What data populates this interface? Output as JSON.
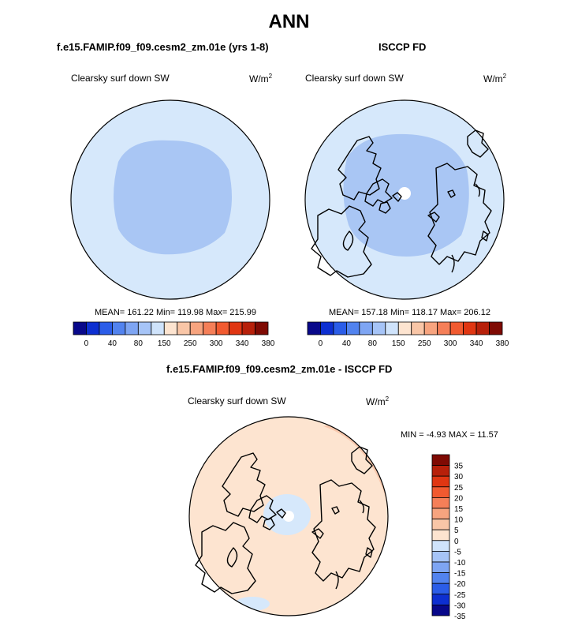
{
  "title": "ANN",
  "panel1": {
    "header": "f.e15.FAMIP.f09_f09.cesm2_zm.01e (yrs 1-8)",
    "variable": "Clearsky surf down SW",
    "unit_base": "W/m",
    "unit_exp": "2",
    "stats": "MEAN= 161.22  Min= 119.98  Max= 215.99"
  },
  "panel2": {
    "header": "ISCCP FD",
    "variable": "Clearsky surf down SW",
    "unit_base": "W/m",
    "unit_exp": "2",
    "stats": "MEAN= 157.18  Min= 118.17  Max= 206.12"
  },
  "panel3": {
    "header": "f.e15.FAMIP.f09_f09.cesm2_zm.01e - ISCCP FD",
    "variable": "Clearsky surf down SW",
    "unit_base": "W/m",
    "unit_exp": "2",
    "stats": "MIN =  -4.93 MAX =  11.57"
  },
  "colorbar_top": {
    "colors": [
      "#08088a",
      "#0d2fd1",
      "#2b5de8",
      "#5283ef",
      "#7ea5f3",
      "#a6c4f7",
      "#cfe3fb",
      "#fde4d0",
      "#f9c6a7",
      "#f7a47f",
      "#f57f58",
      "#f15a30",
      "#e03612",
      "#b7200a",
      "#7f0a03"
    ],
    "labels": [
      "0",
      "40",
      "80",
      "150",
      "250",
      "300",
      "340",
      "380"
    ]
  },
  "colorbar_diff": {
    "colors": [
      "#08088a",
      "#0d2fd1",
      "#2b5de8",
      "#5283ef",
      "#7ea5f3",
      "#a6c4f7",
      "#cfe3fb",
      "#fde4d0",
      "#f9c6a7",
      "#f7a47f",
      "#f57f58",
      "#f15a30",
      "#e03612",
      "#b7200a",
      "#7f0a03"
    ],
    "labels": [
      "35",
      "30",
      "25",
      "20",
      "15",
      "10",
      "5",
      "0",
      "-5",
      "-10",
      "-15",
      "-20",
      "-25",
      "-30",
      "-35"
    ]
  },
  "map_colors": {
    "model_base": "#d6e8fb",
    "model_core": "#a9c6f4",
    "obs_base": "#d6e8fb",
    "obs_core": "#a9c6f4",
    "diff_base": "#fde4d0",
    "diff_warm": "#f9c8ad",
    "diff_cool": "#d6e8fb",
    "edge_warm": "#fde4d0",
    "missing": "#ffffff"
  }
}
